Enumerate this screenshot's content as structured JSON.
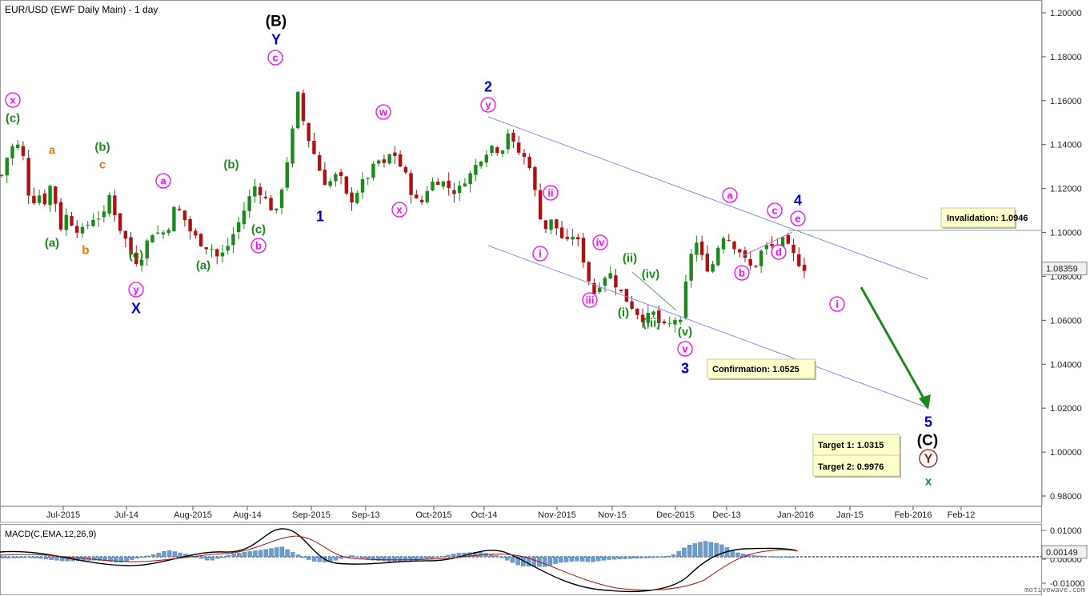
{
  "title": "EUR/USD (EWF Daily Main) - 1 day",
  "macd_title": "MACD(C,EMA,12,26,9)",
  "watermark": "motivewave.com",
  "price_label": "1.08359",
  "macd_label": "0.00149",
  "colors": {
    "up": "#1a8a1a",
    "down": "#b01010",
    "channel": "#8888ee",
    "arrow": "#1a8a1a",
    "macd_hist": "#6b9ccf",
    "macd_line": "#000000",
    "signal_line": "#b01010",
    "magenta": "#ff00ff",
    "green": "#1a8a1a",
    "orange": "#e87a00",
    "blue": "#0000cc",
    "black": "#000000",
    "darkred": "#8b1a1a",
    "teal": "#1a7a7a"
  },
  "chart_data": {
    "type": "candlestick",
    "symbol": "EUR/USD",
    "timeframe": "1 day",
    "ylim": [
      0.96,
      1.205
    ],
    "y_ticks": [
      "1.20000",
      "1.18000",
      "1.16000",
      "1.14000",
      "1.12000",
      "1.10000",
      "1.08000",
      "1.06000",
      "1.04000",
      "1.02000",
      "1.00000",
      "0.98000"
    ],
    "x_ticks": [
      "Jul-2015",
      "Jul-14",
      "Aug-2015",
      "Aug-14",
      "Sep-2015",
      "Sep-13",
      "Oct-2015",
      "Oct-14",
      "Nov-2015",
      "Nov-15",
      "Dec-2015",
      "Dec-13",
      "Jan-2016",
      "Jan-15",
      "Feb-2016",
      "Feb-12"
    ],
    "close_path": [
      [
        0,
        1.126
      ],
      [
        4,
        1.137
      ],
      [
        8,
        1.141
      ],
      [
        12,
        1.134
      ],
      [
        16,
        1.112
      ],
      [
        20,
        1.118
      ],
      [
        24,
        1.114
      ],
      [
        28,
        1.124
      ],
      [
        32,
        1.101
      ],
      [
        36,
        1.108
      ],
      [
        40,
        1.103
      ],
      [
        44,
        1.1
      ],
      [
        48,
        1.104
      ],
      [
        52,
        1.108
      ],
      [
        56,
        1.106
      ],
      [
        60,
        1.118
      ],
      [
        64,
        1.104
      ],
      [
        68,
        1.098
      ],
      [
        72,
        1.089
      ],
      [
        76,
        1.086
      ],
      [
        80,
        1.095
      ],
      [
        84,
        1.101
      ],
      [
        88,
        1.099
      ],
      [
        92,
        1.102
      ],
      [
        96,
        1.112
      ],
      [
        100,
        1.108
      ],
      [
        104,
        1.101
      ],
      [
        108,
        1.097
      ],
      [
        112,
        1.094
      ],
      [
        116,
        1.093
      ],
      [
        120,
        1.088
      ],
      [
        124,
        1.092
      ],
      [
        128,
        1.099
      ],
      [
        132,
        1.106
      ],
      [
        136,
        1.114
      ],
      [
        140,
        1.121
      ],
      [
        144,
        1.118
      ],
      [
        148,
        1.112
      ],
      [
        152,
        1.109
      ],
      [
        156,
        1.125
      ],
      [
        160,
        1.141
      ],
      [
        164,
        1.163
      ],
      [
        168,
        1.146
      ],
      [
        172,
        1.138
      ],
      [
        176,
        1.128
      ],
      [
        180,
        1.121
      ],
      [
        184,
        1.126
      ],
      [
        188,
        1.124
      ],
      [
        192,
        1.113
      ],
      [
        196,
        1.118
      ],
      [
        200,
        1.123
      ],
      [
        204,
        1.127
      ],
      [
        208,
        1.133
      ],
      [
        212,
        1.13
      ],
      [
        216,
        1.138
      ],
      [
        220,
        1.131
      ],
      [
        224,
        1.125
      ],
      [
        228,
        1.115
      ],
      [
        232,
        1.113
      ],
      [
        236,
        1.121
      ],
      [
        240,
        1.124
      ],
      [
        244,
        1.123
      ],
      [
        248,
        1.12
      ],
      [
        252,
        1.118
      ],
      [
        256,
        1.124
      ],
      [
        260,
        1.127
      ],
      [
        264,
        1.133
      ],
      [
        268,
        1.137
      ],
      [
        272,
        1.14
      ],
      [
        276,
        1.136
      ],
      [
        280,
        1.146
      ],
      [
        284,
        1.138
      ],
      [
        288,
        1.135
      ],
      [
        292,
        1.131
      ],
      [
        296,
        1.114
      ],
      [
        300,
        1.101
      ],
      [
        304,
        1.105
      ],
      [
        308,
        1.101
      ],
      [
        312,
        1.094
      ],
      [
        316,
        1.099
      ],
      [
        320,
        1.094
      ],
      [
        324,
        1.08
      ],
      [
        328,
        1.072
      ],
      [
        332,
        1.079
      ],
      [
        336,
        1.082
      ],
      [
        340,
        1.076
      ],
      [
        344,
        1.071
      ],
      [
        348,
        1.067
      ],
      [
        352,
        1.063
      ],
      [
        356,
        1.06
      ],
      [
        360,
        1.064
      ],
      [
        364,
        1.058
      ],
      [
        368,
        1.056
      ],
      [
        372,
        1.061
      ],
      [
        376,
        1.058
      ],
      [
        380,
        1.088
      ],
      [
        384,
        1.096
      ],
      [
        388,
        1.087
      ],
      [
        392,
        1.082
      ],
      [
        396,
        1.093
      ],
      [
        400,
        1.1
      ],
      [
        404,
        1.095
      ],
      [
        408,
        1.092
      ],
      [
        412,
        1.086
      ],
      [
        416,
        1.083
      ],
      [
        420,
        1.091
      ],
      [
        424,
        1.094
      ],
      [
        428,
        1.093
      ],
      [
        432,
        1.096
      ],
      [
        436,
        1.092
      ],
      [
        440,
        1.087
      ],
      [
        444,
        1.084
      ]
    ],
    "channel_lines": [
      {
        "from": [
          "Oct-14",
          1.15
        ],
        "to": [
          "Feb-12",
          1.071
        ]
      },
      {
        "from": [
          "Nov-2015",
          1.089
        ],
        "to": [
          "Feb-2016",
          1.009
        ]
      }
    ],
    "levels": [
      {
        "label": "Invalidation:",
        "value": "1.0946"
      },
      {
        "label": "Confirmation:",
        "value": "1.0525"
      },
      {
        "label": "Target 1:",
        "value": "1.0315"
      },
      {
        "label": "Target 2:",
        "value": "0.9976"
      }
    ],
    "macd": {
      "params": "C,EMA,12,26,9",
      "ylim": [
        -0.0115,
        0.0115
      ],
      "y_ticks": [
        "0.01000",
        "0.00000",
        "-0.01000"
      ]
    }
  },
  "wave_labels": [
    {
      "text": "x",
      "style": "magenta-circle"
    },
    {
      "text": "(c)",
      "style": "green"
    },
    {
      "text": "a",
      "style": "orange"
    },
    {
      "text": "(b)",
      "style": "green"
    },
    {
      "text": "c",
      "style": "orange"
    },
    {
      "text": "(a)",
      "style": "green"
    },
    {
      "text": "b",
      "style": "orange"
    },
    {
      "text": "(c)",
      "style": "green"
    },
    {
      "text": "y",
      "style": "magenta-circle"
    },
    {
      "text": "X",
      "style": "blue"
    },
    {
      "text": "a",
      "style": "magenta-circle"
    },
    {
      "text": "(b)",
      "style": "green"
    },
    {
      "text": "(a)",
      "style": "green"
    },
    {
      "text": "(c)",
      "style": "green"
    },
    {
      "text": "b",
      "style": "magenta-circle"
    },
    {
      "text": "(B)",
      "style": "black"
    },
    {
      "text": "Y",
      "style": "blue"
    },
    {
      "text": "c",
      "style": "magenta-circle"
    },
    {
      "text": "1",
      "style": "blue"
    },
    {
      "text": "w",
      "style": "magenta-circle"
    },
    {
      "text": "x",
      "style": "magenta-circle"
    },
    {
      "text": "2",
      "style": "blue"
    },
    {
      "text": "y",
      "style": "magenta-circle"
    },
    {
      "text": "ii",
      "style": "magenta-circle"
    },
    {
      "text": "i",
      "style": "magenta-circle"
    },
    {
      "text": "iv",
      "style": "magenta-circle"
    },
    {
      "text": "iii",
      "style": "magenta-circle"
    },
    {
      "text": "(ii)",
      "style": "green"
    },
    {
      "text": "(iv)",
      "style": "green"
    },
    {
      "text": "(i)",
      "style": "green"
    },
    {
      "text": "(iii)",
      "style": "green"
    },
    {
      "text": "(v)",
      "style": "green"
    },
    {
      "text": "v",
      "style": "magenta-circle"
    },
    {
      "text": "3",
      "style": "blue"
    },
    {
      "text": "a",
      "style": "magenta-circle"
    },
    {
      "text": "b",
      "style": "magenta-circle"
    },
    {
      "text": "c",
      "style": "magenta-circle"
    },
    {
      "text": "d",
      "style": "magenta-circle"
    },
    {
      "text": "4",
      "style": "blue"
    },
    {
      "text": "e",
      "style": "magenta-circle"
    },
    {
      "text": "i",
      "style": "magenta-circle"
    },
    {
      "text": "5",
      "style": "blue"
    },
    {
      "text": "(C)",
      "style": "black"
    },
    {
      "text": "Y",
      "style": "darkred-circle"
    },
    {
      "text": "x",
      "style": "teal"
    }
  ]
}
